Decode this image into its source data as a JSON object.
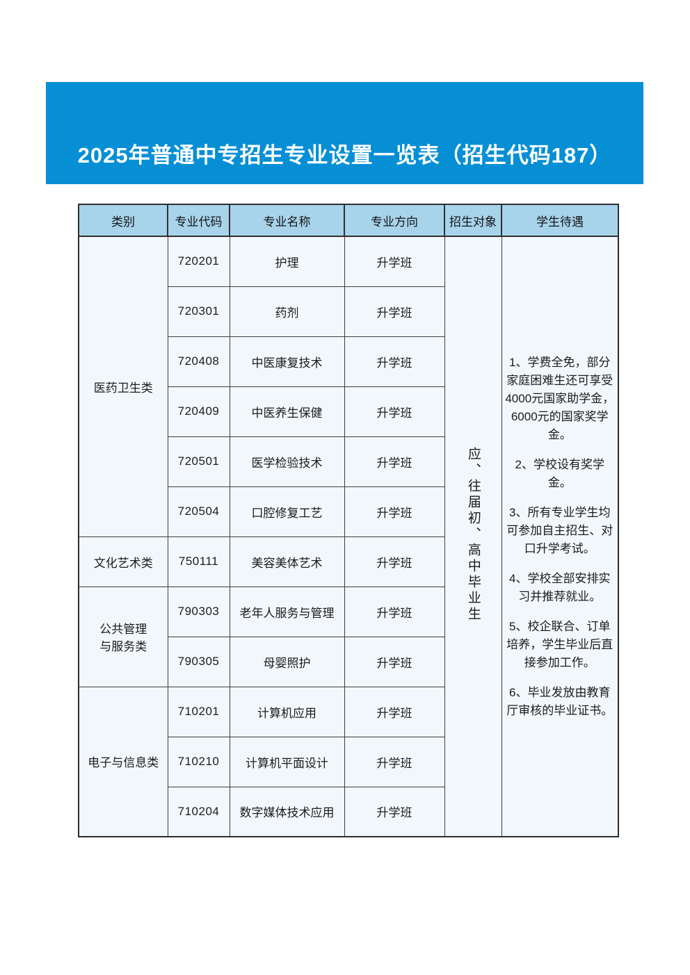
{
  "banner": {
    "title": "2025年普通中专招生专业设置一览表（招生代码187）",
    "bg_color": "#068FD5",
    "text_color": "#ffffff"
  },
  "table": {
    "headers": [
      "类别",
      "专业代码",
      "专业名称",
      "专业方向",
      "招生对象",
      "学生待遇"
    ],
    "categories": [
      {
        "lines": [
          "医药卫生类"
        ],
        "rowspan": 6
      },
      {
        "lines": [
          "文化艺术类"
        ],
        "rowspan": 1
      },
      {
        "lines": [
          "公共管理",
          "与服务类"
        ],
        "rowspan": 2
      },
      {
        "lines": [
          "电子与信息类"
        ],
        "rowspan": 3
      }
    ],
    "rows": [
      {
        "code": "720201",
        "major": "护理",
        "direction": "升学班"
      },
      {
        "code": "720301",
        "major": "药剂",
        "direction": "升学班"
      },
      {
        "code": "720408",
        "major": "中医康复技术",
        "direction": "升学班"
      },
      {
        "code": "720409",
        "major": "中医养生保健",
        "direction": "升学班"
      },
      {
        "code": "720501",
        "major": "医学检验技术",
        "direction": "升学班"
      },
      {
        "code": "720504",
        "major": "口腔修复工艺",
        "direction": "升学班"
      },
      {
        "code": "750111",
        "major": "美容美体艺术",
        "direction": "升学班"
      },
      {
        "code": "790303",
        "major": "老年人服务与管理",
        "direction": "升学班"
      },
      {
        "code": "790305",
        "major": "母婴照护",
        "direction": "升学班"
      },
      {
        "code": "710201",
        "major": "计算机应用",
        "direction": "升学班"
      },
      {
        "code": "710210",
        "major": "计算机平面设计",
        "direction": "升学班"
      },
      {
        "code": "710204",
        "major": "数字媒体技术应用",
        "direction": "升学班"
      }
    ],
    "enrollment_target": "应、往届初、高中毕业生",
    "benefits": [
      "1、学费全免，部分家庭困难生还可享受4000元国家助学金，6000元的国家奖学金。",
      "2、学校设有奖学金。",
      "3、所有专业学生均可参加自主招生、对口升学考试。",
      "4、学校全部安排实习并推荐就业。",
      "5、校企联合、订单培养，学生毕业后直接参加工作。",
      "6、毕业发放由教育厅审核的毕业证书。"
    ],
    "header_bg_color": "#A7D3EB",
    "cell_bg_color": "#F2F7FB"
  }
}
